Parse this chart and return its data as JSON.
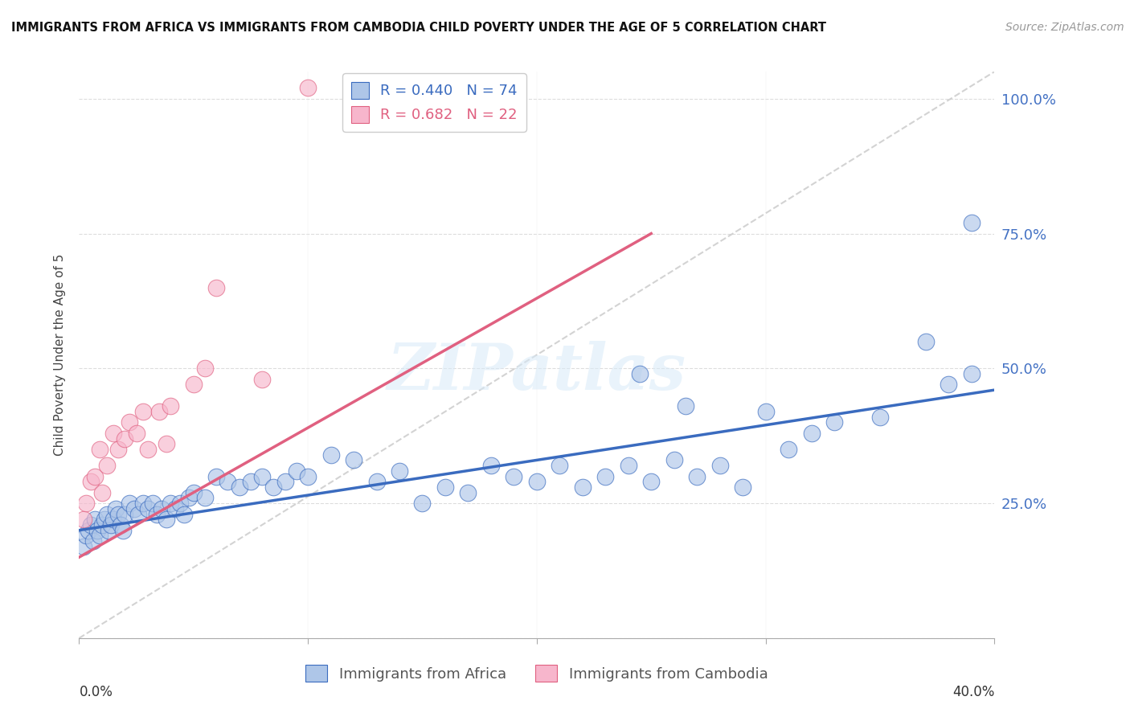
{
  "title": "IMMIGRANTS FROM AFRICA VS IMMIGRANTS FROM CAMBODIA CHILD POVERTY UNDER THE AGE OF 5 CORRELATION CHART",
  "source": "Source: ZipAtlas.com",
  "ylabel": "Child Poverty Under the Age of 5",
  "xlim": [
    0.0,
    0.4
  ],
  "ylim": [
    0.0,
    1.05
  ],
  "africa_R": 0.44,
  "africa_N": 74,
  "cambodia_R": 0.682,
  "cambodia_N": 22,
  "africa_color": "#aec6e8",
  "cambodia_color": "#f7b6cc",
  "africa_line_color": "#3a6bbf",
  "cambodia_line_color": "#e06080",
  "diagonal_color": "#c8c8c8",
  "watermark": "ZIPatlas",
  "africa_line_x0": 0.0,
  "africa_line_y0": 0.2,
  "africa_line_x1": 0.4,
  "africa_line_y1": 0.46,
  "cambodia_line_x0": 0.0,
  "cambodia_line_y0": 0.15,
  "cambodia_line_x1": 0.25,
  "cambodia_line_y1": 0.75,
  "africa_x": [
    0.002,
    0.003,
    0.004,
    0.005,
    0.006,
    0.007,
    0.008,
    0.009,
    0.01,
    0.011,
    0.012,
    0.013,
    0.014,
    0.015,
    0.016,
    0.017,
    0.018,
    0.019,
    0.02,
    0.022,
    0.024,
    0.026,
    0.028,
    0.03,
    0.032,
    0.034,
    0.036,
    0.038,
    0.04,
    0.042,
    0.044,
    0.046,
    0.048,
    0.05,
    0.055,
    0.06,
    0.065,
    0.07,
    0.075,
    0.08,
    0.085,
    0.09,
    0.095,
    0.1,
    0.11,
    0.12,
    0.13,
    0.14,
    0.15,
    0.16,
    0.17,
    0.18,
    0.19,
    0.2,
    0.21,
    0.22,
    0.23,
    0.24,
    0.25,
    0.26,
    0.27,
    0.28,
    0.29,
    0.3,
    0.31,
    0.32,
    0.33,
    0.35,
    0.37,
    0.38,
    0.39,
    0.39,
    0.245,
    0.265
  ],
  "africa_y": [
    0.17,
    0.19,
    0.2,
    0.21,
    0.18,
    0.22,
    0.2,
    0.19,
    0.21,
    0.22,
    0.23,
    0.2,
    0.21,
    0.22,
    0.24,
    0.23,
    0.21,
    0.2,
    0.23,
    0.25,
    0.24,
    0.23,
    0.25,
    0.24,
    0.25,
    0.23,
    0.24,
    0.22,
    0.25,
    0.24,
    0.25,
    0.23,
    0.26,
    0.27,
    0.26,
    0.3,
    0.29,
    0.28,
    0.29,
    0.3,
    0.28,
    0.29,
    0.31,
    0.3,
    0.34,
    0.33,
    0.29,
    0.31,
    0.25,
    0.28,
    0.27,
    0.32,
    0.3,
    0.29,
    0.32,
    0.28,
    0.3,
    0.32,
    0.29,
    0.33,
    0.3,
    0.32,
    0.28,
    0.42,
    0.35,
    0.38,
    0.4,
    0.41,
    0.55,
    0.47,
    0.49,
    0.77,
    0.49,
    0.43
  ],
  "cambodia_x": [
    0.002,
    0.003,
    0.005,
    0.007,
    0.009,
    0.01,
    0.012,
    0.015,
    0.017,
    0.02,
    0.022,
    0.025,
    0.028,
    0.03,
    0.035,
    0.038,
    0.04,
    0.05,
    0.055,
    0.06,
    0.08,
    0.1
  ],
  "cambodia_y": [
    0.22,
    0.25,
    0.29,
    0.3,
    0.35,
    0.27,
    0.32,
    0.38,
    0.35,
    0.37,
    0.4,
    0.38,
    0.42,
    0.35,
    0.42,
    0.36,
    0.43,
    0.47,
    0.5,
    0.65,
    0.48,
    1.02
  ]
}
